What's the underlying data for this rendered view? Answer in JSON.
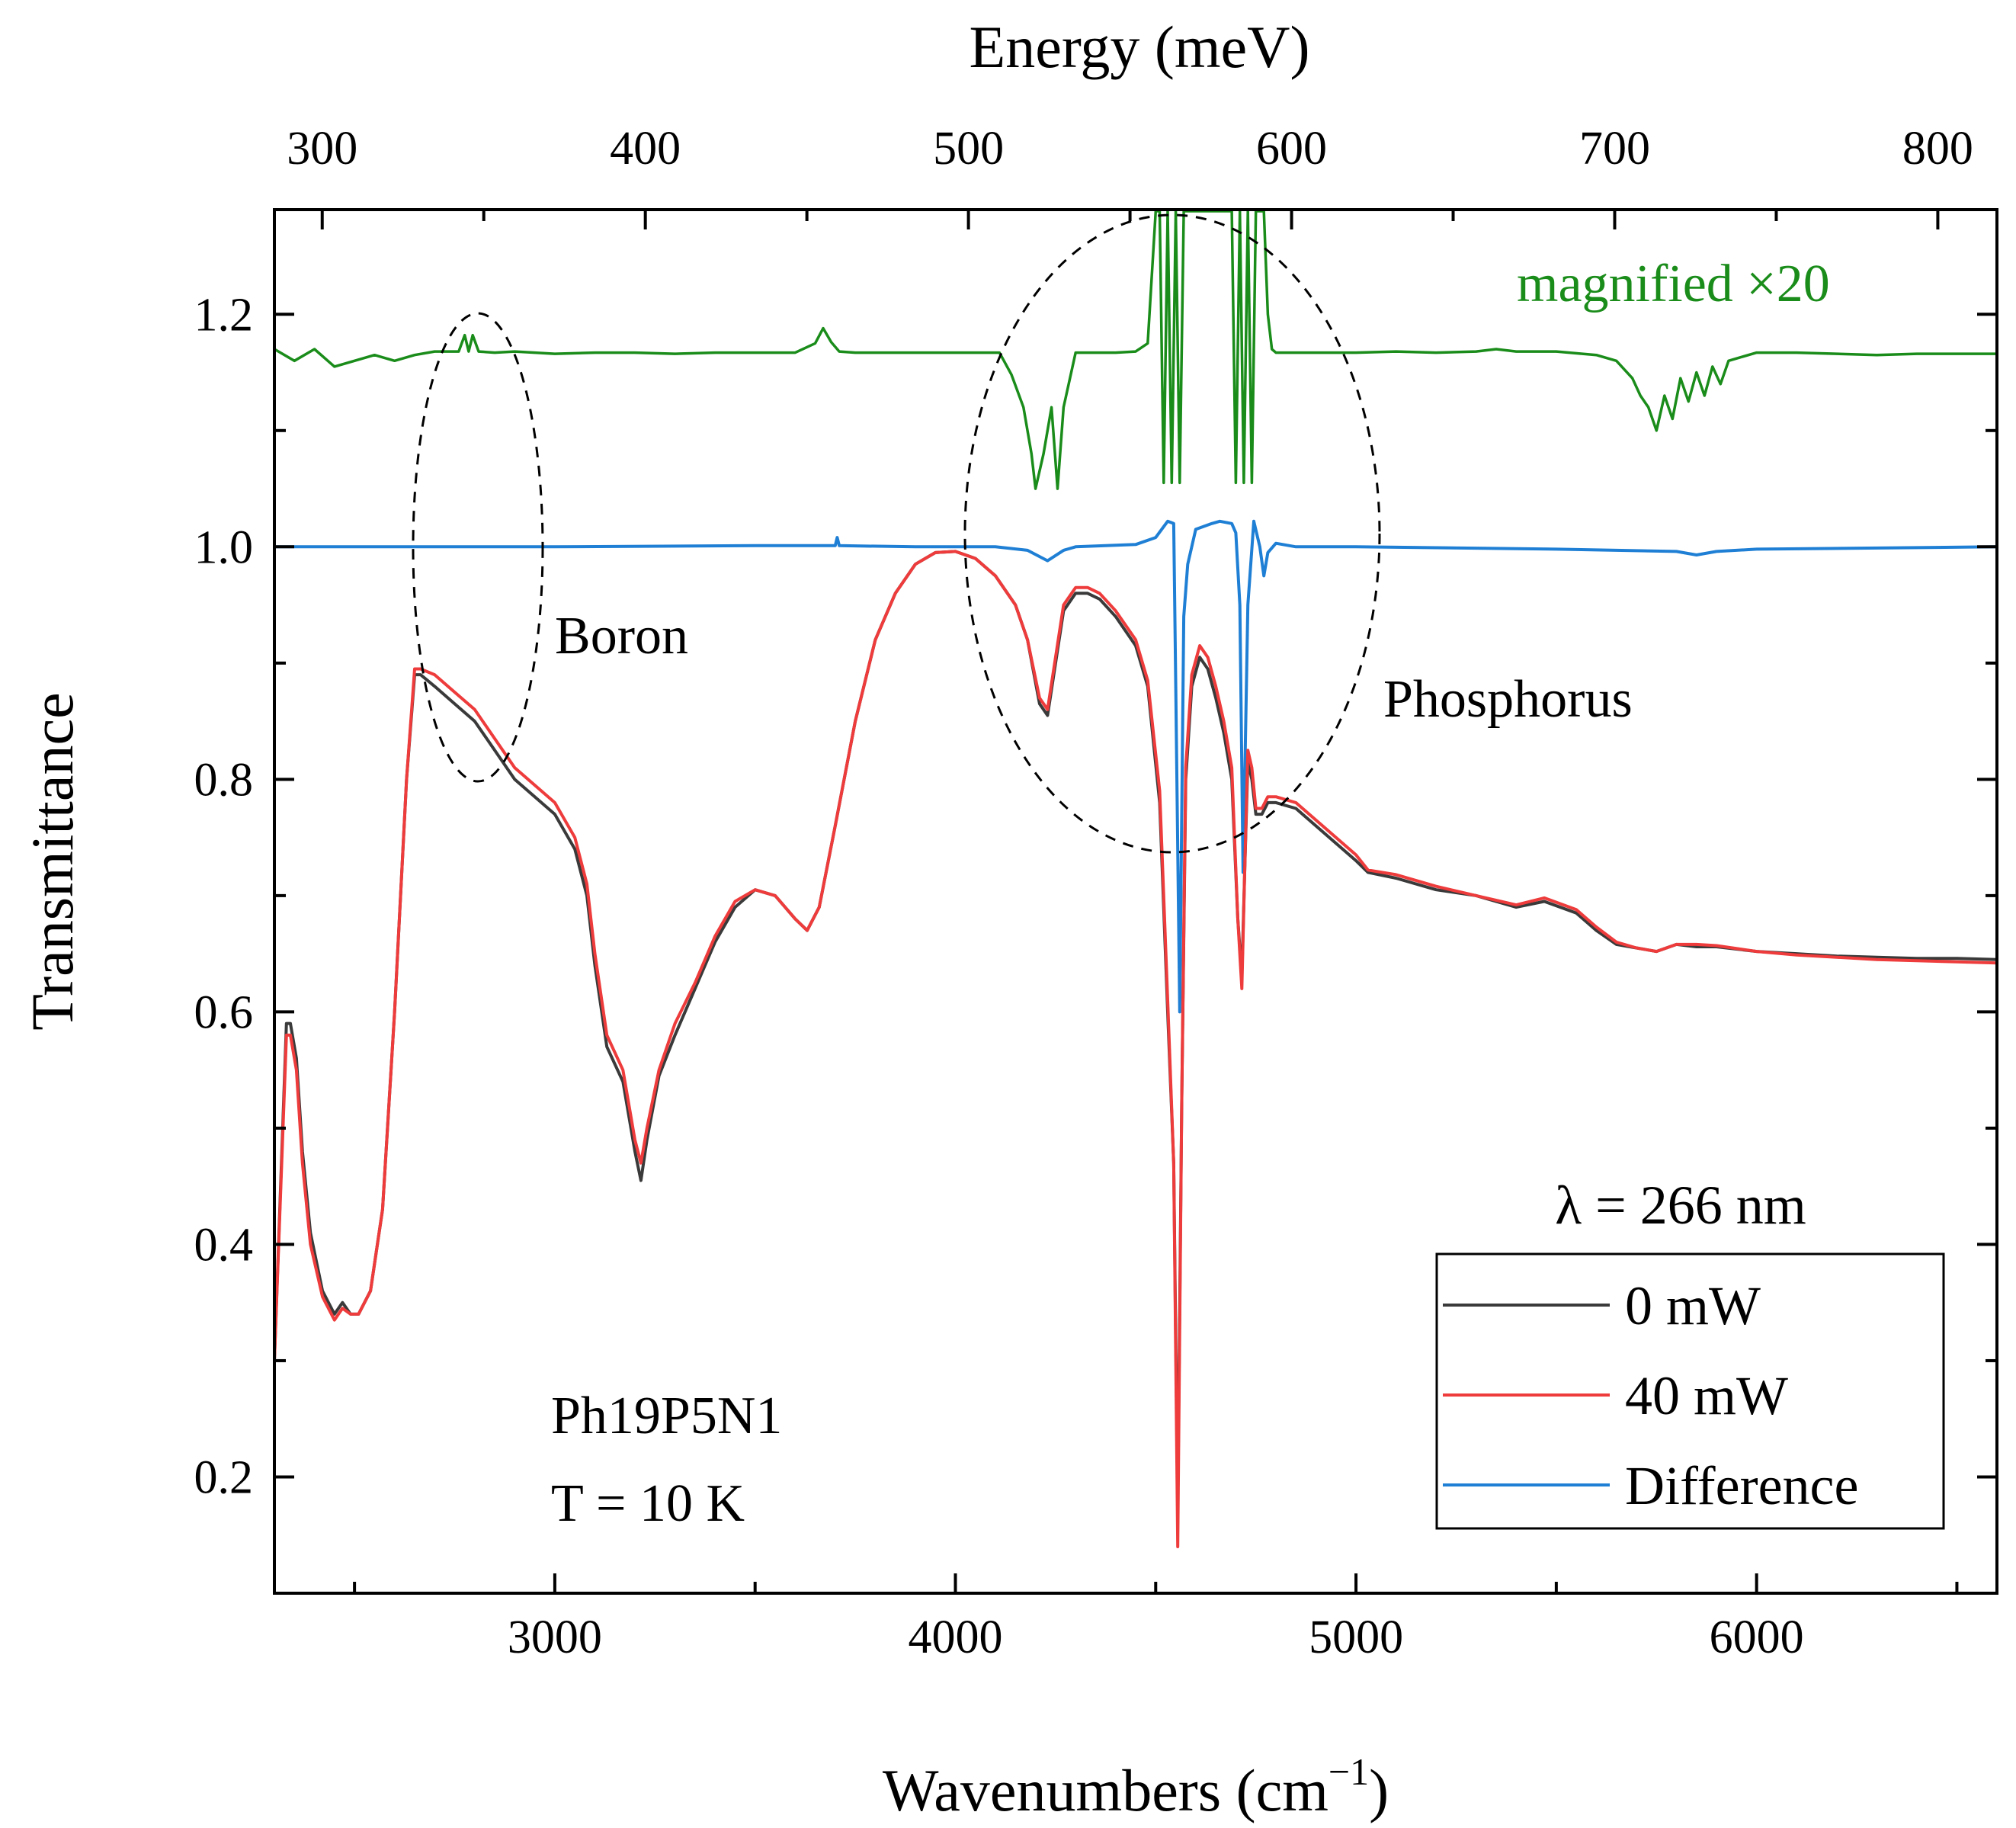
{
  "chart_data": {
    "type": "line",
    "title": "",
    "xlabel": "Wavenumbers (cm",
    "xlabel_exponent": "−1",
    "xlabel_close": ")",
    "x2label": "Energy (meV)",
    "ylabel": "Transmittance",
    "xlim": [
      2300,
      6600
    ],
    "ylim": [
      0.1,
      1.29
    ],
    "x2lim": [
      285.2,
      818.3
    ],
    "x_ticks": [
      3000,
      4000,
      5000,
      6000
    ],
    "x2_ticks": [
      300,
      400,
      500,
      600,
      700,
      800
    ],
    "y_ticks": [
      0.2,
      0.4,
      0.6,
      0.8,
      1.0,
      1.2
    ],
    "y_tick_labels": [
      "0.2",
      "0.4",
      "0.6",
      "0.8",
      "1.0",
      "1.2"
    ],
    "legend_title": "λ = 266 nm",
    "legend_position": "bottom-right",
    "annotations": {
      "sample": "Ph19P5N1",
      "temperature": "T = 10 K",
      "boron": "Boron",
      "phosphorus": "Phosphorus",
      "magnified": "magnified ×20"
    },
    "series": [
      {
        "name": "0 mW",
        "color": "#3a3a3a",
        "x": [
          2300,
          2330,
          2340,
          2355,
          2370,
          2390,
          2420,
          2450,
          2470,
          2490,
          2510,
          2540,
          2570,
          2600,
          2630,
          2650,
          2665,
          2700,
          2750,
          2800,
          2850,
          2900,
          2950,
          3000,
          3050,
          3080,
          3100,
          3130,
          3170,
          3200,
          3215,
          3230,
          3260,
          3300,
          3350,
          3400,
          3450,
          3500,
          3550,
          3600,
          3630,
          3660,
          3700,
          3750,
          3800,
          3850,
          3900,
          3950,
          4000,
          4050,
          4100,
          4150,
          4180,
          4210,
          4230,
          4250,
          4270,
          4300,
          4330,
          4360,
          4400,
          4450,
          4480,
          4510,
          4530,
          4545,
          4555,
          4565,
          4575,
          4590,
          4610,
          4630,
          4650,
          4670,
          4690,
          4705,
          4715,
          4722,
          4730,
          4740,
          4750,
          4765,
          4780,
          4800,
          4850,
          4900,
          4950,
          5000,
          5030,
          5100,
          5200,
          5300,
          5400,
          5470,
          5550,
          5600,
          5650,
          5700,
          5750,
          5800,
          5850,
          5900,
          6000,
          6100,
          6200,
          6300,
          6400,
          6500,
          6600
        ],
        "y": [
          0.3,
          0.59,
          0.59,
          0.56,
          0.48,
          0.41,
          0.36,
          0.34,
          0.35,
          0.34,
          0.34,
          0.36,
          0.43,
          0.6,
          0.8,
          0.89,
          0.89,
          0.88,
          0.865,
          0.85,
          0.825,
          0.8,
          0.785,
          0.77,
          0.74,
          0.7,
          0.64,
          0.57,
          0.54,
          0.48,
          0.455,
          0.49,
          0.545,
          0.58,
          0.62,
          0.66,
          0.69,
          0.705,
          0.7,
          0.68,
          0.67,
          0.69,
          0.76,
          0.85,
          0.92,
          0.96,
          0.985,
          0.995,
          0.996,
          0.99,
          0.975,
          0.95,
          0.92,
          0.865,
          0.855,
          0.9,
          0.945,
          0.96,
          0.96,
          0.955,
          0.94,
          0.915,
          0.88,
          0.78,
          0.6,
          0.47,
          0.17,
          0.52,
          0.8,
          0.88,
          0.905,
          0.895,
          0.87,
          0.84,
          0.8,
          0.68,
          0.63,
          0.72,
          0.815,
          0.8,
          0.77,
          0.77,
          0.78,
          0.78,
          0.775,
          0.76,
          0.745,
          0.73,
          0.72,
          0.715,
          0.705,
          0.7,
          0.69,
          0.695,
          0.685,
          0.67,
          0.658,
          0.655,
          0.652,
          0.658,
          0.656,
          0.656,
          0.652,
          0.65,
          0.648,
          0.647,
          0.646,
          0.646,
          0.645
        ]
      },
      {
        "name": "40 mW",
        "color": "#ee3b3b",
        "x": [
          2300,
          2330,
          2340,
          2355,
          2370,
          2390,
          2420,
          2450,
          2470,
          2490,
          2510,
          2540,
          2570,
          2600,
          2630,
          2650,
          2665,
          2700,
          2750,
          2800,
          2850,
          2900,
          2950,
          3000,
          3050,
          3080,
          3100,
          3130,
          3170,
          3200,
          3215,
          3230,
          3260,
          3300,
          3350,
          3400,
          3450,
          3500,
          3550,
          3600,
          3630,
          3660,
          3700,
          3750,
          3800,
          3850,
          3900,
          3950,
          4000,
          4050,
          4100,
          4150,
          4180,
          4210,
          4230,
          4250,
          4270,
          4300,
          4330,
          4360,
          4400,
          4450,
          4480,
          4510,
          4530,
          4545,
          4555,
          4565,
          4575,
          4590,
          4610,
          4630,
          4650,
          4670,
          4690,
          4705,
          4715,
          4722,
          4730,
          4740,
          4750,
          4765,
          4780,
          4800,
          4850,
          4900,
          4950,
          5000,
          5030,
          5100,
          5200,
          5300,
          5400,
          5470,
          5550,
          5600,
          5650,
          5700,
          5750,
          5800,
          5850,
          5900,
          6000,
          6100,
          6200,
          6300,
          6400,
          6500,
          6600
        ],
        "y": [
          0.3,
          0.58,
          0.58,
          0.55,
          0.47,
          0.4,
          0.355,
          0.335,
          0.345,
          0.34,
          0.34,
          0.36,
          0.43,
          0.6,
          0.8,
          0.895,
          0.895,
          0.89,
          0.875,
          0.86,
          0.835,
          0.81,
          0.795,
          0.78,
          0.75,
          0.71,
          0.65,
          0.58,
          0.55,
          0.49,
          0.47,
          0.5,
          0.55,
          0.59,
          0.625,
          0.665,
          0.695,
          0.705,
          0.7,
          0.68,
          0.67,
          0.69,
          0.76,
          0.85,
          0.92,
          0.96,
          0.985,
          0.995,
          0.996,
          0.99,
          0.975,
          0.95,
          0.92,
          0.87,
          0.86,
          0.905,
          0.95,
          0.965,
          0.965,
          0.96,
          0.945,
          0.92,
          0.885,
          0.79,
          0.61,
          0.47,
          0.14,
          0.52,
          0.81,
          0.89,
          0.915,
          0.905,
          0.88,
          0.85,
          0.81,
          0.68,
          0.62,
          0.72,
          0.825,
          0.81,
          0.775,
          0.775,
          0.785,
          0.785,
          0.78,
          0.765,
          0.75,
          0.735,
          0.722,
          0.718,
          0.708,
          0.7,
          0.692,
          0.698,
          0.688,
          0.673,
          0.66,
          0.655,
          0.652,
          0.658,
          0.658,
          0.657,
          0.652,
          0.649,
          0.647,
          0.645,
          0.644,
          0.643,
          0.642
        ]
      },
      {
        "name": "Difference",
        "color": "#1f7fd4",
        "x": [
          2300,
          2500,
          2800,
          3000,
          3500,
          3700,
          3705,
          3710,
          3900,
          4100,
          4180,
          4230,
          4270,
          4300,
          4450,
          4500,
          4530,
          4545,
          4550,
          4560,
          4570,
          4580,
          4600,
          4640,
          4660,
          4690,
          4700,
          4710,
          4718,
          4730,
          4745,
          4760,
          4770,
          4780,
          4800,
          4850,
          5000,
          5500,
          5800,
          5850,
          5900,
          6000,
          6600
        ],
        "y": [
          1.0,
          1.0,
          1.0,
          1.0,
          1.001,
          1.001,
          1.008,
          1.001,
          1.0,
          1.0,
          0.997,
          0.988,
          0.997,
          1.0,
          1.002,
          1.008,
          1.022,
          1.02,
          0.88,
          0.6,
          0.94,
          0.985,
          1.015,
          1.02,
          1.022,
          1.02,
          1.012,
          0.95,
          0.72,
          0.95,
          1.022,
          1.0,
          0.975,
          0.995,
          1.003,
          1.0,
          1.0,
          0.998,
          0.996,
          0.993,
          0.996,
          0.998,
          1.0
        ]
      },
      {
        "name": "magnified ×20",
        "color": "#1a8c1a",
        "x": [
          2300,
          2350,
          2400,
          2450,
          2500,
          2550,
          2600,
          2650,
          2700,
          2760,
          2775,
          2785,
          2795,
          2810,
          2850,
          2900,
          3000,
          3100,
          3200,
          3300,
          3400,
          3500,
          3600,
          3650,
          3670,
          3680,
          3690,
          3710,
          3750,
          3800,
          3900,
          4000,
          4050,
          4110,
          4140,
          4170,
          4190,
          4200,
          4220,
          4240,
          4255,
          4270,
          4300,
          4400,
          4450,
          4480,
          4500,
          4510,
          4520,
          4530,
          4540,
          4550,
          4560,
          4570,
          4580,
          4590,
          4600,
          4610,
          4620,
          4660,
          4690,
          4700,
          4710,
          4720,
          4730,
          4740,
          4750,
          4760,
          4770,
          4780,
          4790,
          4800,
          4850,
          4900,
          5000,
          5100,
          5200,
          5300,
          5350,
          5400,
          5500,
          5600,
          5650,
          5690,
          5710,
          5730,
          5750,
          5770,
          5790,
          5810,
          5830,
          5850,
          5870,
          5890,
          5910,
          5930,
          5960,
          6000,
          6100,
          6200,
          6300,
          6400,
          6500,
          6600
        ],
        "y": [
          1.17,
          1.16,
          1.17,
          1.155,
          1.16,
          1.165,
          1.16,
          1.165,
          1.168,
          1.168,
          1.182,
          1.168,
          1.182,
          1.168,
          1.167,
          1.168,
          1.166,
          1.167,
          1.167,
          1.166,
          1.167,
          1.167,
          1.167,
          1.175,
          1.188,
          1.182,
          1.176,
          1.168,
          1.167,
          1.167,
          1.167,
          1.167,
          1.167,
          1.167,
          1.148,
          1.12,
          1.08,
          1.05,
          1.08,
          1.12,
          1.05,
          1.12,
          1.167,
          1.167,
          1.168,
          1.175,
          1.29,
          1.29,
          1.055,
          1.29,
          1.055,
          1.29,
          1.055,
          1.29,
          1.29,
          1.29,
          1.29,
          1.29,
          1.29,
          1.29,
          1.29,
          1.055,
          1.29,
          1.055,
          1.29,
          1.055,
          1.29,
          1.29,
          1.29,
          1.2,
          1.17,
          1.167,
          1.167,
          1.167,
          1.167,
          1.168,
          1.167,
          1.168,
          1.17,
          1.168,
          1.168,
          1.165,
          1.16,
          1.145,
          1.13,
          1.12,
          1.1,
          1.13,
          1.11,
          1.145,
          1.125,
          1.15,
          1.13,
          1.155,
          1.14,
          1.16,
          1.163,
          1.167,
          1.167,
          1.166,
          1.165,
          1.166,
          1.166,
          1.166
        ]
      }
    ]
  }
}
